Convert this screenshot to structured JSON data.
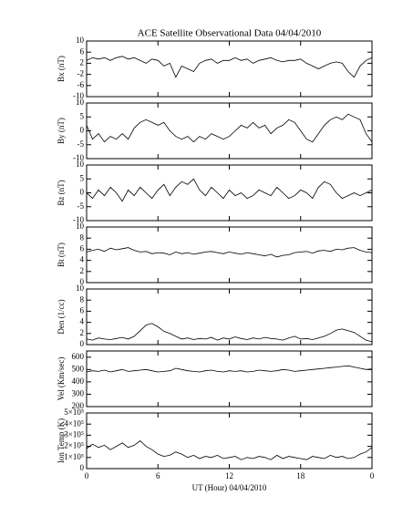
{
  "chart_data": [
    {
      "type": "line",
      "title": "ACE Satellite Observational Data   04/04/2010",
      "ylabel": "Bx (nT)",
      "x": [
        0,
        0.5,
        1,
        1.5,
        2,
        2.5,
        3,
        3.5,
        4,
        4.5,
        5,
        5.5,
        6,
        6.5,
        7,
        7.5,
        8,
        8.5,
        9,
        9.5,
        10,
        10.5,
        11,
        11.5,
        12,
        12.5,
        13,
        13.5,
        14,
        14.5,
        15,
        15.5,
        16,
        16.5,
        17,
        17.5,
        18,
        18.5,
        19,
        19.5,
        20,
        20.5,
        21,
        21.5,
        22,
        22.5,
        23,
        23.5,
        24
      ],
      "values": [
        3,
        4,
        3.5,
        4,
        3,
        4,
        4.5,
        3.5,
        4,
        3,
        2,
        3.5,
        3,
        1,
        2,
        -3,
        1,
        0,
        -1,
        2,
        3,
        3.5,
        2,
        3,
        3,
        4,
        3,
        3.5,
        2,
        3,
        3.5,
        4,
        3,
        2.5,
        3,
        3,
        3.5,
        2,
        1,
        0,
        1,
        2,
        2.5,
        2,
        -1,
        -3,
        1,
        3,
        4
      ],
      "xlim": [
        0,
        24
      ],
      "xticks": [
        0,
        6,
        12,
        18,
        24
      ],
      "ylim": [
        -10,
        10
      ],
      "yticks": [
        -10,
        -6,
        -2,
        2,
        6,
        10
      ],
      "color": "#000000"
    },
    {
      "type": "line",
      "ylabel": "By (nT)",
      "x": [
        0,
        0.5,
        1,
        1.5,
        2,
        2.5,
        3,
        3.5,
        4,
        4.5,
        5,
        5.5,
        6,
        6.5,
        7,
        7.5,
        8,
        8.5,
        9,
        9.5,
        10,
        10.5,
        11,
        11.5,
        12,
        12.5,
        13,
        13.5,
        14,
        14.5,
        15,
        15.5,
        16,
        16.5,
        17,
        17.5,
        18,
        18.5,
        19,
        19.5,
        20,
        20.5,
        21,
        21.5,
        22,
        22.5,
        23,
        23.5,
        24
      ],
      "values": [
        2,
        -3,
        -1,
        -4,
        -2,
        -3,
        -1,
        -3,
        1,
        3,
        4,
        3,
        2,
        3,
        0,
        -2,
        -3,
        -2,
        -4,
        -2,
        -3,
        -1,
        -2,
        -3,
        -2,
        0,
        2,
        1,
        3,
        1,
        2,
        -1,
        1,
        2,
        4,
        3,
        0,
        -3,
        -4,
        -1,
        2,
        4,
        5,
        4,
        6,
        5,
        4,
        -1,
        -4
      ],
      "xlim": [
        0,
        24
      ],
      "xticks": [
        0,
        6,
        12,
        18,
        24
      ],
      "ylim": [
        -10,
        10
      ],
      "yticks": [
        -10,
        -5,
        0,
        5,
        10
      ],
      "color": "#000000"
    },
    {
      "type": "line",
      "ylabel": "Bz (nT)",
      "x": [
        0,
        0.5,
        1,
        1.5,
        2,
        2.5,
        3,
        3.5,
        4,
        4.5,
        5,
        5.5,
        6,
        6.5,
        7,
        7.5,
        8,
        8.5,
        9,
        9.5,
        10,
        10.5,
        11,
        11.5,
        12,
        12.5,
        13,
        13.5,
        14,
        14.5,
        15,
        15.5,
        16,
        16.5,
        17,
        17.5,
        18,
        18.5,
        19,
        19.5,
        20,
        20.5,
        21,
        21.5,
        22,
        22.5,
        23,
        23.5,
        24
      ],
      "values": [
        0,
        -2,
        1,
        -1,
        2,
        0,
        -3,
        1,
        -1,
        2,
        0,
        -2,
        1,
        3,
        -1,
        2,
        4,
        3,
        5,
        1,
        -1,
        2,
        0,
        -2,
        1,
        -1,
        0,
        -2,
        -1,
        1,
        0,
        -1,
        2,
        0,
        -2,
        -1,
        1,
        0,
        -2,
        2,
        4,
        3,
        0,
        -2,
        -1,
        0,
        -1,
        0,
        1
      ],
      "xlim": [
        0,
        24
      ],
      "xticks": [
        0,
        6,
        12,
        18,
        24
      ],
      "ylim": [
        -10,
        10
      ],
      "yticks": [
        -10,
        -5,
        0,
        5,
        10
      ],
      "color": "#000000"
    },
    {
      "type": "line",
      "ylabel": "Bt (nT)",
      "x": [
        0,
        0.5,
        1,
        1.5,
        2,
        2.5,
        3,
        3.5,
        4,
        4.5,
        5,
        5.5,
        6,
        6.5,
        7,
        7.5,
        8,
        8.5,
        9,
        9.5,
        10,
        10.5,
        11,
        11.5,
        12,
        12.5,
        13,
        13.5,
        14,
        14.5,
        15,
        15.5,
        16,
        16.5,
        17,
        17.5,
        18,
        18.5,
        19,
        19.5,
        20,
        20.5,
        21,
        21.5,
        22,
        22.5,
        23,
        23.5,
        24
      ],
      "values": [
        5.5,
        5.8,
        6,
        5.6,
        6.2,
        5.9,
        6.1,
        6.3,
        5.8,
        5.5,
        5.6,
        5.2,
        5.4,
        5.3,
        5.0,
        5.5,
        5.2,
        5.4,
        5.1,
        5.3,
        5.5,
        5.6,
        5.4,
        5.2,
        5.5,
        5.3,
        5.1,
        5.4,
        5.2,
        5.0,
        4.8,
        5.1,
        4.6,
        4.9,
        5.0,
        5.4,
        5.5,
        5.6,
        5.3,
        5.7,
        5.8,
        5.6,
        6.0,
        5.9,
        6.2,
        6.3,
        5.8,
        5.5,
        5.4
      ],
      "xlim": [
        0,
        24
      ],
      "xticks": [
        0,
        6,
        12,
        18,
        24
      ],
      "ylim": [
        0,
        10
      ],
      "yticks": [
        0,
        2,
        4,
        6,
        8,
        10
      ],
      "color": "#000000"
    },
    {
      "type": "line",
      "ylabel": "Den (1/cc)",
      "x": [
        0,
        0.5,
        1,
        1.5,
        2,
        2.5,
        3,
        3.5,
        4,
        4.5,
        5,
        5.5,
        6,
        6.5,
        7,
        7.5,
        8,
        8.5,
        9,
        9.5,
        10,
        10.5,
        11,
        11.5,
        12,
        12.5,
        13,
        13.5,
        14,
        14.5,
        15,
        15.5,
        16,
        16.5,
        17,
        17.5,
        18,
        18.5,
        19,
        19.5,
        20,
        20.5,
        21,
        21.5,
        22,
        22.5,
        23,
        23.5,
        24
      ],
      "values": [
        1,
        0.8,
        1.2,
        1,
        0.9,
        1.1,
        1.3,
        1,
        1.5,
        2.5,
        3.5,
        3.8,
        3.2,
        2.4,
        2,
        1.5,
        1,
        1.2,
        0.9,
        1.1,
        1,
        1.3,
        0.8,
        1.2,
        1,
        1.4,
        1.1,
        0.9,
        1.2,
        1,
        1.3,
        1.1,
        1,
        0.8,
        1.2,
        1.5,
        1,
        1.1,
        0.9,
        1.2,
        1.5,
        2,
        2.6,
        2.8,
        2.5,
        2.2,
        1.5,
        0.8,
        0.5
      ],
      "xlim": [
        0,
        24
      ],
      "xticks": [
        0,
        6,
        12,
        18,
        24
      ],
      "ylim": [
        0,
        10
      ],
      "yticks": [
        0,
        2,
        4,
        6,
        8,
        10
      ],
      "color": "#000000"
    },
    {
      "type": "line",
      "ylabel": "Vel (Km/sec)",
      "x": [
        0,
        0.5,
        1,
        1.5,
        2,
        2.5,
        3,
        3.5,
        4,
        4.5,
        5,
        5.5,
        6,
        6.5,
        7,
        7.5,
        8,
        8.5,
        9,
        9.5,
        10,
        10.5,
        11,
        11.5,
        12,
        12.5,
        13,
        13.5,
        14,
        14.5,
        15,
        15.5,
        16,
        16.5,
        17,
        17.5,
        18,
        18.5,
        19,
        19.5,
        20,
        20.5,
        21,
        21.5,
        22,
        22.5,
        23,
        23.5,
        24
      ],
      "values": [
        480,
        490,
        485,
        495,
        480,
        490,
        500,
        485,
        490,
        495,
        500,
        490,
        480,
        485,
        490,
        510,
        500,
        490,
        485,
        480,
        490,
        495,
        485,
        480,
        490,
        485,
        490,
        480,
        485,
        495,
        490,
        485,
        490,
        500,
        495,
        485,
        490,
        495,
        500,
        505,
        510,
        515,
        520,
        525,
        530,
        520,
        510,
        500,
        505
      ],
      "xlim": [
        0,
        24
      ],
      "xticks": [
        0,
        6,
        12,
        18,
        24
      ],
      "ylim": [
        200,
        650
      ],
      "yticks": [
        200,
        300,
        400,
        500,
        600
      ],
      "color": "#000000"
    },
    {
      "type": "line",
      "ylabel": "Ion Temp (K)",
      "xlabel": "UT (Hour)  04/04/2010",
      "x": [
        0,
        0.5,
        1,
        1.5,
        2,
        2.5,
        3,
        3.5,
        4,
        4.5,
        5,
        5.5,
        6,
        6.5,
        7,
        7.5,
        8,
        8.5,
        9,
        9.5,
        10,
        10.5,
        11,
        11.5,
        12,
        12.5,
        13,
        13.5,
        14,
        14.5,
        15,
        15.5,
        16,
        16.5,
        17,
        17.5,
        18,
        18.5,
        19,
        19.5,
        20,
        20.5,
        21,
        21.5,
        22,
        22.5,
        23,
        23.5,
        24
      ],
      "values": [
        180000,
        220000,
        190000,
        210000,
        170000,
        200000,
        230000,
        190000,
        210000,
        250000,
        200000,
        170000,
        130000,
        110000,
        120000,
        150000,
        130000,
        100000,
        120000,
        90000,
        110000,
        100000,
        120000,
        90000,
        100000,
        110000,
        80000,
        100000,
        90000,
        110000,
        100000,
        80000,
        120000,
        90000,
        110000,
        100000,
        90000,
        80000,
        110000,
        100000,
        90000,
        120000,
        100000,
        110000,
        90000,
        100000,
        130000,
        150000,
        190000
      ],
      "xlim": [
        0,
        24
      ],
      "xticks": [
        0,
        6,
        12,
        18,
        {
          "value": 24,
          "label": "0"
        }
      ],
      "ylim": [
        0,
        500000
      ],
      "yticks": [
        0,
        {
          "value": 100000,
          "label": "1×10⁵"
        },
        {
          "value": 200000,
          "label": "2×10⁵"
        },
        {
          "value": 300000,
          "label": "3×10⁵"
        },
        {
          "value": 400000,
          "label": "4×10⁵"
        },
        {
          "value": 500000,
          "label": "5×10⁵"
        }
      ],
      "color": "#000000"
    }
  ]
}
